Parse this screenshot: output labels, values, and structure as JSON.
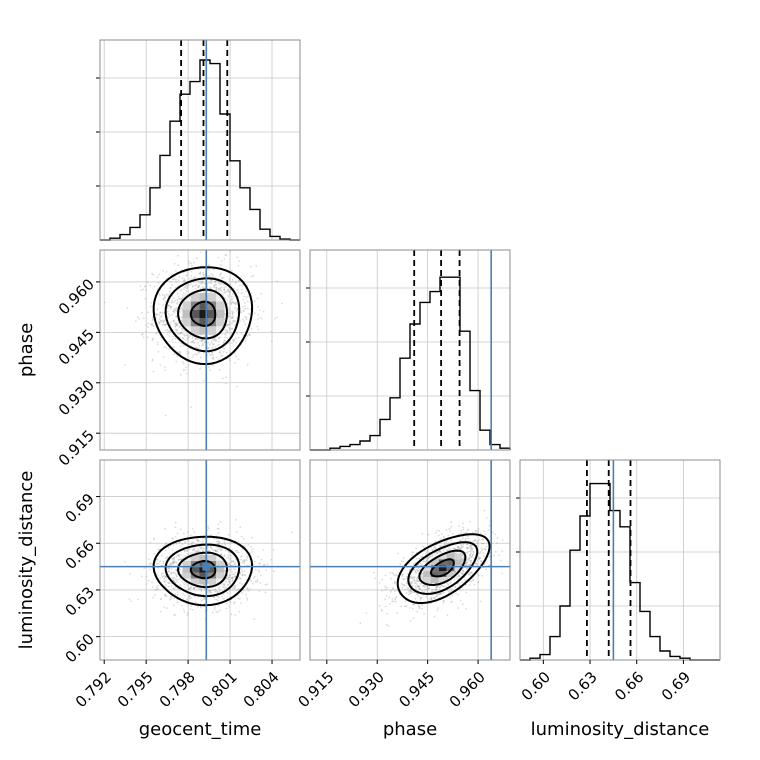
{
  "chart_data": {
    "type": "corner",
    "parameters": [
      "geocent_time",
      "phase",
      "luminosity_distance"
    ],
    "axes": {
      "geocent_time": {
        "range": [
          0.7917,
          0.806
        ],
        "ticks": [
          0.792,
          0.795,
          0.798,
          0.801,
          0.804
        ],
        "tick_labels": [
          "0.792",
          "0.795",
          "0.798",
          "0.801",
          "0.804"
        ]
      },
      "phase": {
        "range": [
          0.91,
          0.9695
        ],
        "ticks": [
          0.915,
          0.93,
          0.945,
          0.96
        ],
        "tick_labels": [
          "0.915",
          "0.930",
          "0.945",
          "0.960"
        ]
      },
      "luminosity_distance": {
        "range": [
          0.585,
          0.7135
        ],
        "ticks": [
          0.6,
          0.63,
          0.66,
          0.69
        ],
        "tick_labels": [
          "0.60",
          "0.63",
          "0.66",
          "0.69"
        ]
      }
    },
    "truths": {
      "geocent_time": 0.7993,
      "phase": 0.9639,
      "luminosity_distance": 0.645
    },
    "quantiles": {
      "geocent_time": [
        0.7975,
        0.7991,
        0.8008
      ],
      "phase": [
        0.941,
        0.949,
        0.9545
      ],
      "luminosity_distance": [
        0.628,
        0.642,
        0.656
      ]
    },
    "histograms": {
      "geocent_time": {
        "edges_range": [
          0.7917,
          0.806
        ],
        "bins": 20,
        "counts": [
          0,
          0.01,
          0.03,
          0.07,
          0.14,
          0.29,
          0.47,
          0.66,
          0.81,
          0.88,
          1.0,
          0.98,
          0.7,
          0.44,
          0.29,
          0.17,
          0.06,
          0.02,
          0.005,
          0
        ]
      },
      "phase": {
        "edges_range": [
          0.91,
          0.9695
        ],
        "bins": 20,
        "counts": [
          0,
          0,
          0.01,
          0.02,
          0.03,
          0.05,
          0.08,
          0.17,
          0.29,
          0.51,
          0.7,
          0.82,
          0.88,
          0.96,
          0.96,
          0.66,
          0.33,
          0.11,
          0.03,
          0.01
        ]
      },
      "luminosity_distance": {
        "edges_range": [
          0.585,
          0.7135
        ],
        "bins": 20,
        "counts": [
          0,
          0.01,
          0.03,
          0.13,
          0.3,
          0.61,
          0.8,
          0.98,
          0.98,
          0.83,
          0.74,
          0.43,
          0.27,
          0.13,
          0.05,
          0.02,
          0.01,
          0,
          0,
          0
        ]
      }
    },
    "pair_stats": {
      "phase_vs_geocent_time": {
        "mean": [
          0.7991,
          0.9505
        ],
        "sd": [
          0.00175,
          0.0072
        ],
        "corr": 0.0
      },
      "luminosity_distance_vs_geocent_time": {
        "mean": [
          0.7991,
          0.643
        ],
        "sd": [
          0.00175,
          0.011
        ],
        "corr": 0.0
      },
      "luminosity_distance_vs_phase": {
        "mean": [
          0.9495,
          0.644
        ],
        "sd": [
          0.0068,
          0.011
        ],
        "corr": 0.55
      }
    },
    "grid": true,
    "colors": {
      "truth": "#4a7fb0",
      "hist": "#000000",
      "points": "#9a9a9a"
    }
  }
}
